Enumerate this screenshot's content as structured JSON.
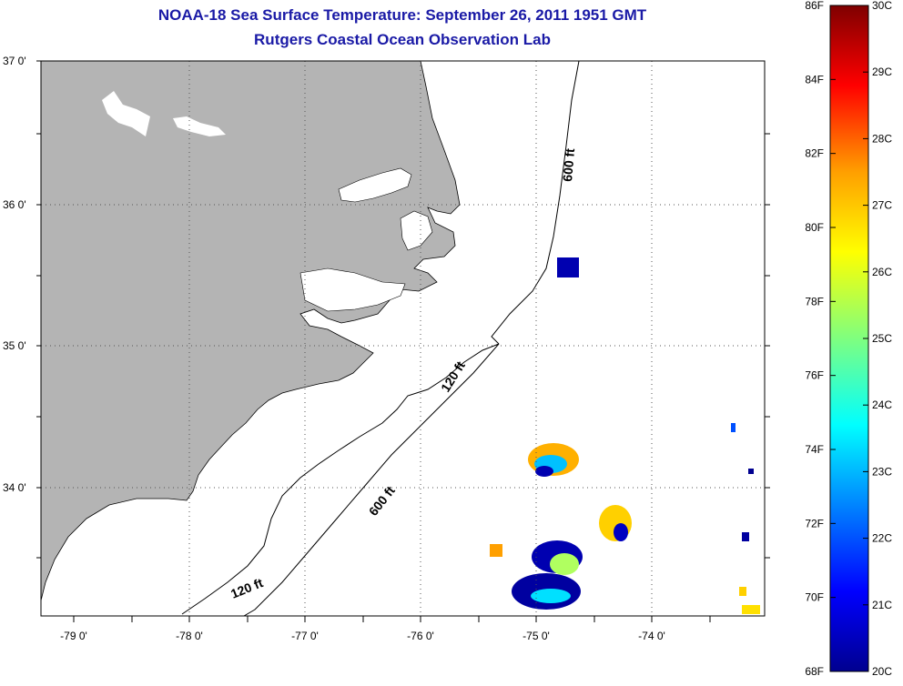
{
  "title": {
    "line1": "NOAA-18 Sea Surface Temperature:  September 26, 2011 1951 GMT",
    "line2": "Rutgers Coastal Ocean Observation Lab"
  },
  "map": {
    "lat_labels": [
      "37 0'",
      "36 0'",
      "35 0'",
      "34 0'"
    ],
    "lon_labels": [
      "-79 0'",
      "-78 0'",
      "-77 0'",
      "-76 0'",
      "-75 0'",
      "-74 0'"
    ],
    "contour_labels": [
      "600 ft",
      "120 ft",
      "600 ft",
      "120 ft"
    ],
    "colors": {
      "land": "#b4b4b4",
      "frame": "#000000",
      "grid": "#555555"
    }
  },
  "colorbar": {
    "f_labels": [
      "86F",
      "84F",
      "82F",
      "80F",
      "78F",
      "76F",
      "74F",
      "72F",
      "70F",
      "68F"
    ],
    "c_labels": [
      "30C",
      "29C",
      "28C",
      "27C",
      "26C",
      "25C",
      "24C",
      "23C",
      "22C",
      "21C",
      "20C"
    ],
    "range_c": [
      20,
      30
    ],
    "range_f": [
      68,
      86
    ],
    "colors": [
      "#00008f",
      "#0000ff",
      "#007fff",
      "#00ffff",
      "#7fff7f",
      "#ffff00",
      "#ff7f00",
      "#ff0000",
      "#7f0000"
    ]
  }
}
